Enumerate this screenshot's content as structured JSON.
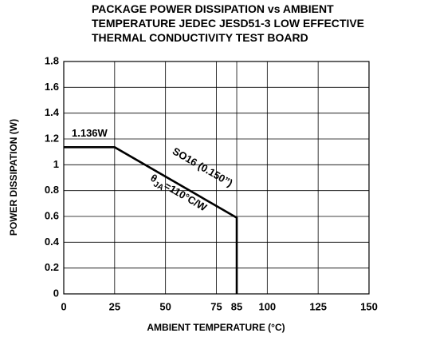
{
  "chart_data": {
    "type": "line",
    "title": [
      "PACKAGE POWER DISSIPATION vs AMBIENT",
      "TEMPERATURE JEDEC JESD51-3 LOW EFFECTIVE",
      "THERMAL CONDUCTIVITY TEST BOARD"
    ],
    "x_label": "AMBIENT TEMPERATURE (°C)",
    "y_label": "POWER DISSIPATION (W)",
    "x": [
      0,
      25,
      85,
      85
    ],
    "series": [
      {
        "color": "#000000",
        "values": [
          1.136,
          1.136,
          0.59,
          0
        ]
      }
    ],
    "xlim": [
      0,
      150
    ],
    "xticks": [
      0,
      25,
      50,
      75,
      85,
      100,
      125,
      150
    ],
    "ylim": [
      0,
      1.8
    ],
    "yticks": [
      0,
      0.2,
      0.4,
      0.6,
      0.8,
      1,
      1.2,
      1.4,
      1.6,
      1.8
    ],
    "grid": true,
    "annotations": {
      "peak": "1.136W",
      "package": "SO16 (0.150”)",
      "theta": {
        "symbol": "θ",
        "subscript": "JA",
        "text": "=110°C/W"
      }
    }
  }
}
